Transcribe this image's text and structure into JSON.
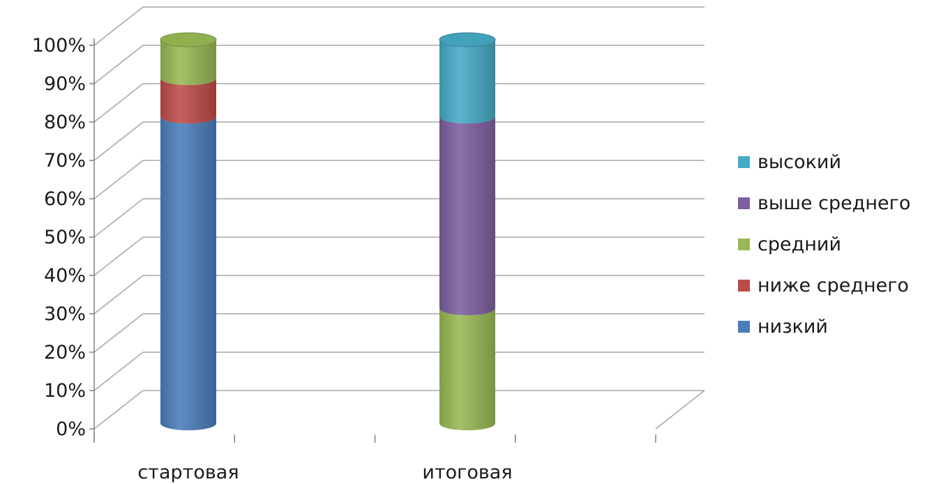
{
  "chart_data": {
    "type": "bar",
    "stacked": true,
    "style": "3d-cylinder",
    "categories": [
      "стартовая",
      "итоговая"
    ],
    "series": [
      {
        "name": "низкий",
        "color": "#4a7ebb",
        "values": [
          80,
          0
        ]
      },
      {
        "name": "ниже среднего",
        "color": "#be4b48",
        "values": [
          10,
          0
        ]
      },
      {
        "name": "средний",
        "color": "#98b954",
        "values": [
          10,
          30
        ]
      },
      {
        "name": "выше среднего",
        "color": "#7d60a0",
        "values": [
          0,
          50
        ]
      },
      {
        "name": "высокий",
        "color": "#46aac5",
        "values": [
          0,
          20
        ]
      }
    ],
    "ylim": [
      0,
      100
    ],
    "yticks": [
      "0%",
      "10%",
      "20%",
      "30%",
      "40%",
      "50%",
      "60%",
      "70%",
      "80%",
      "90%",
      "100%"
    ],
    "grid": true,
    "legend_position": "right",
    "legend_order": [
      "высокий",
      "выше среднего",
      "средний",
      "ниже среднего",
      "низкий"
    ]
  }
}
